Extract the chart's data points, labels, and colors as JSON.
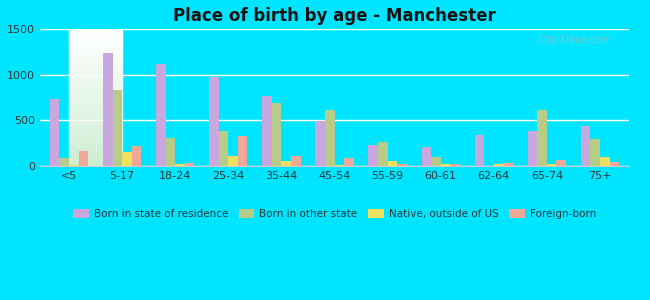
{
  "title": "Place of birth by age - Manchester",
  "background_color": "#00e5ff",
  "categories": [
    "<5",
    "5-17",
    "18-24",
    "25-34",
    "35-44",
    "45-54",
    "55-59",
    "60-61",
    "62-64",
    "65-74",
    "75+"
  ],
  "series": {
    "Born in state of residence": {
      "color": "#c9a8e0",
      "values": [
        730,
        1240,
        1120,
        980,
        770,
        490,
        230,
        210,
        340,
        380,
        440
      ]
    },
    "Born in other state": {
      "color": "#b8cc8a",
      "values": [
        90,
        830,
        310,
        380,
        690,
        610,
        260,
        100,
        0,
        610,
        300
      ]
    },
    "Native, outside of US": {
      "color": "#f0e060",
      "values": [
        15,
        155,
        20,
        110,
        50,
        15,
        50,
        20,
        20,
        25,
        100
      ]
    },
    "Foreign-born": {
      "color": "#f0a898",
      "values": [
        160,
        215,
        30,
        330,
        110,
        90,
        25,
        20,
        30,
        70,
        40
      ]
    }
  },
  "ylim": [
    0,
    1500
  ],
  "yticks": [
    0,
    500,
    1000,
    1500
  ],
  "watermark": "City-Data.com",
  "bar_width": 0.18,
  "legend_labels": [
    "Born in state of residence",
    "Born in other state",
    "Native, outside of US",
    "Foreign-born"
  ]
}
